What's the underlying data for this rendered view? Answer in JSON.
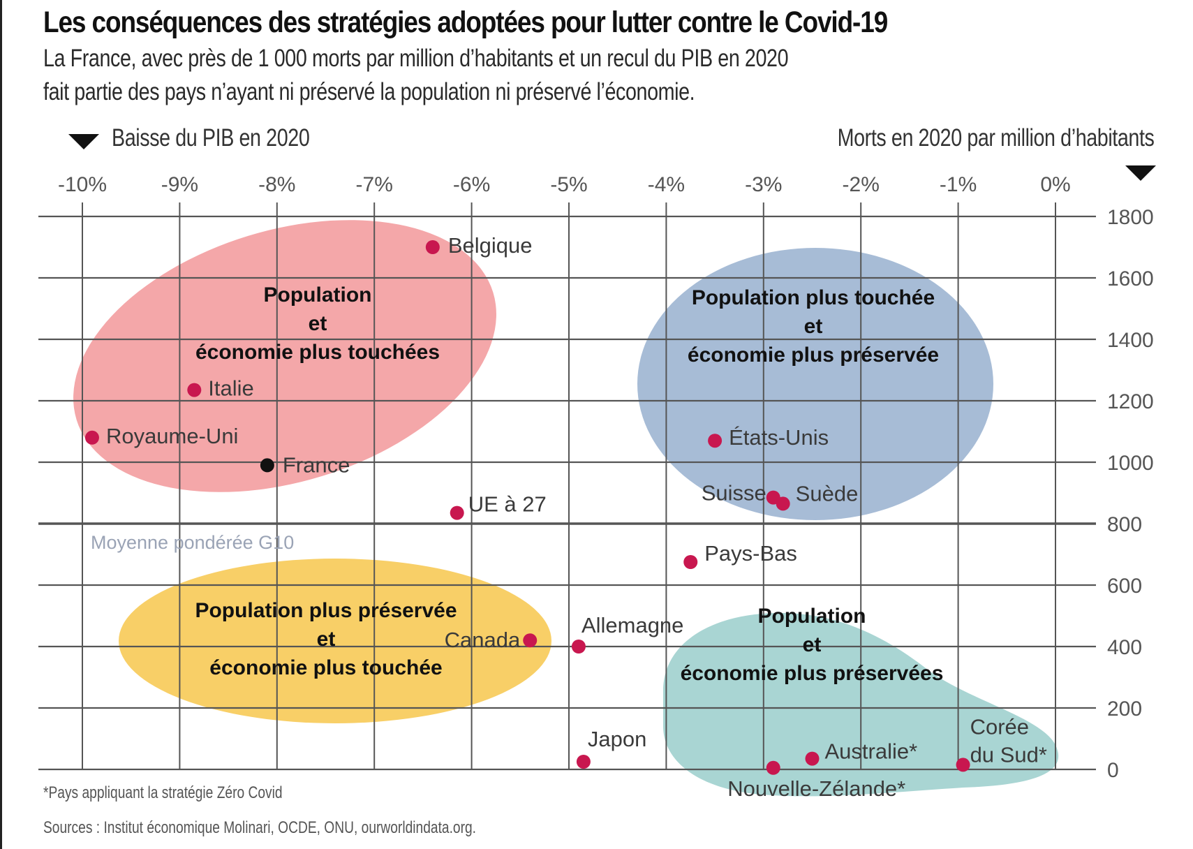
{
  "header": {
    "title": "Les conséquences des stratégies adoptées pour lutter contre le Covid-19",
    "subtitle_line1": "La France, avec près de 1 000 morts par million d’habitants et un recul du PIB en 2020",
    "subtitle_line2": "fait partie des pays n’ayant ni préservé la population ni préservé l’économie."
  },
  "footer": {
    "note": "*Pays appliquant la stratégie Zéro Covid",
    "sources": "Sources : Institut économique Molinari, OCDE, ONU, ourworldindata.org."
  },
  "colors": {
    "point": "#c8174f",
    "highlight_point": "#111111",
    "highlight_label": "#c8174f",
    "region_top_left": "#f4a7a9",
    "region_top_right": "#a7bcd6",
    "region_bottom_left": "#f8cf67",
    "region_bottom_right": "#a9d5d3",
    "grid": "#555555",
    "g10_line": "#444444"
  },
  "chart_data": {
    "type": "scatter",
    "title": "Les conséquences des stratégies adoptées pour lutter contre le Covid-19",
    "xlabel": "Baisse du PIB en 2020",
    "ylabel": "Morts en 2020 par million d’habitants",
    "xlim": [
      -10,
      0
    ],
    "ylim": [
      0,
      1800
    ],
    "grid": true,
    "x_ticks": [
      -10,
      -9,
      -8,
      -7,
      -6,
      -5,
      -4,
      -3,
      -2,
      -1,
      0
    ],
    "x_tick_labels": [
      "-10%",
      "-9%",
      "-8%",
      "-7%",
      "-6%",
      "-5%",
      "-4%",
      "-3%",
      "-2%",
      "-1%",
      "0%"
    ],
    "y_ticks": [
      0,
      200,
      400,
      600,
      800,
      1000,
      1200,
      1400,
      1600,
      1800
    ],
    "y_tick_labels": [
      "0",
      "200",
      "400",
      "600",
      "800",
      "1000",
      "1200",
      "1400",
      "1600",
      "1800"
    ],
    "x_axis_position": "top",
    "y_axis_position": "right",
    "reference_line": {
      "label": "Moyenne pondérée G10",
      "y": 800
    },
    "regions": [
      {
        "label_lines": [
          "Population",
          "et",
          "économie plus touchées"
        ],
        "quadrant": "top-left",
        "color_key": "region_top_left"
      },
      {
        "label_lines": [
          "Population plus touchée",
          "et",
          "économie plus préservée"
        ],
        "quadrant": "top-right",
        "color_key": "region_top_right"
      },
      {
        "label_lines": [
          "Population plus préservée",
          "et",
          "économie plus touchée"
        ],
        "quadrant": "bottom-left",
        "color_key": "region_bottom_left"
      },
      {
        "label_lines": [
          "Population",
          "et",
          "économie plus préservées"
        ],
        "quadrant": "bottom-right",
        "color_key": "region_bottom_right"
      }
    ],
    "points": [
      {
        "label": "Belgique",
        "x": -6.4,
        "y": 1700
      },
      {
        "label": "Italie",
        "x": -8.85,
        "y": 1235
      },
      {
        "label": "Royaume-Uni",
        "x": -9.9,
        "y": 1080
      },
      {
        "label": "France",
        "x": -8.1,
        "y": 990,
        "highlight": true
      },
      {
        "label": "UE à 27",
        "x": -6.15,
        "y": 835
      },
      {
        "label": "États-Unis",
        "x": -3.5,
        "y": 1070
      },
      {
        "label": "Suisse",
        "x": -2.9,
        "y": 885
      },
      {
        "label": "Suède",
        "x": -2.8,
        "y": 865
      },
      {
        "label": "Pays-Bas",
        "x": -3.75,
        "y": 675
      },
      {
        "label": "Canada",
        "x": -5.4,
        "y": 420
      },
      {
        "label": "Allemagne",
        "x": -4.9,
        "y": 400
      },
      {
        "label": "Japon",
        "x": -4.85,
        "y": 25
      },
      {
        "label": "Nouvelle-Zélande*",
        "x": -2.9,
        "y": 5
      },
      {
        "label": "Australie*",
        "x": -2.5,
        "y": 35
      },
      {
        "label": "Corée du Sud*",
        "x": -0.95,
        "y": 15
      }
    ]
  }
}
